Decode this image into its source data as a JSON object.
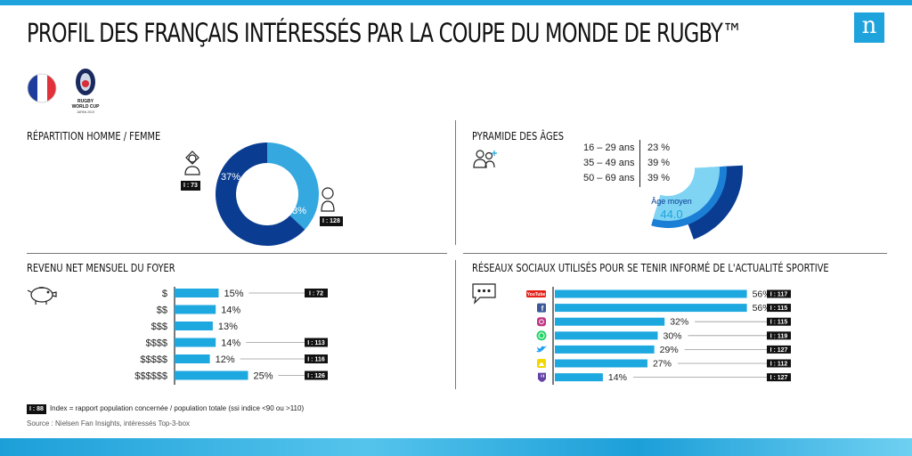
{
  "header": {
    "title": "PROFIL DES FRANÇAIS INTÉRESSÉS PAR LA COUPE DU MONDE DE RUGBY™",
    "brand_letter": "n",
    "event_logo_text": "RUGBY WORLD CUP JAPAN 2019"
  },
  "colors": {
    "dark_blue": "#0a3d91",
    "mid_blue": "#1c7fd6",
    "light_blue": "#35a8e0",
    "lighter_blue": "#7fd4f4",
    "bar_blue": "#1ea8e0",
    "flag_blue": "#1f3c9c",
    "flag_red": "#e1313b"
  },
  "gender": {
    "title": "RÉPARTITION HOMME / FEMME",
    "female_label": "37%",
    "male_label": "63%",
    "female_index": "I : 73",
    "male_index": "I : 128"
  },
  "age": {
    "title": "PYRAMIDE DES ÂGES",
    "rows": [
      {
        "range": "16 – 29 ans",
        "pct": "23 %"
      },
      {
        "range": "35 – 49 ans",
        "pct": "39 %"
      },
      {
        "range": "50 – 69 ans",
        "pct": "39 %"
      }
    ],
    "avg_label": "Âge moyen",
    "avg_value": "44.0"
  },
  "income": {
    "title": "REVENU NET MENSUEL DU FOYER",
    "rows": [
      {
        "label": "$",
        "pct": "15%",
        "index": "I : 72"
      },
      {
        "label": "$$",
        "pct": "14%",
        "index": ""
      },
      {
        "label": "$$$",
        "pct": "13%",
        "index": ""
      },
      {
        "label": "$$$$",
        "pct": "14%",
        "index": "I : 113"
      },
      {
        "label": "$$$$$",
        "pct": "12%",
        "index": "I : 116"
      },
      {
        "label": "$$$$$$",
        "pct": "25%",
        "index": "I : 126"
      }
    ]
  },
  "social": {
    "title": "RÉSEAUX SOCIAUX UTILISÉS POUR SE TENIR INFORMÉ DE L'ACTUALITÉ SPORTIVE",
    "rows": [
      {
        "icon": "youtube-icon",
        "icon_text": "YouTube",
        "color": "#e62117",
        "pct": "56%",
        "index": "I : 117"
      },
      {
        "icon": "facebook-icon",
        "icon_text": "f",
        "color": "#3b5998",
        "pct": "56%",
        "index": "I : 115"
      },
      {
        "icon": "instagram-icon",
        "icon_text": "",
        "color": "#c13584",
        "pct": "32%",
        "index": "I : 115"
      },
      {
        "icon": "whatsapp-icon",
        "icon_text": "",
        "color": "#25d366",
        "pct": "30%",
        "index": "I : 119"
      },
      {
        "icon": "twitter-icon",
        "icon_text": "",
        "color": "#1da1f2",
        "pct": "29%",
        "index": "I : 127"
      },
      {
        "icon": "snapchat-icon",
        "icon_text": "",
        "color": "#f2d600",
        "pct": "27%",
        "index": "I : 112"
      },
      {
        "icon": "twitch-icon",
        "icon_text": "",
        "color": "#6441a5",
        "pct": "14%",
        "index": "I : 127"
      }
    ]
  },
  "footer": {
    "legend_badge": "I : 88",
    "legend_text": "Index = rapport population concernée / population totale (ssi indice <90 ou >110)",
    "source": "Source : Nielsen Fan Insights, intéressés Top-3-box"
  },
  "chart_data": [
    {
      "type": "pie",
      "title": "RÉPARTITION HOMME / FEMME",
      "categories": [
        "Femme",
        "Homme"
      ],
      "values": [
        37,
        63
      ],
      "index": [
        73,
        128
      ]
    },
    {
      "type": "pie",
      "title": "PYRAMIDE DES ÂGES",
      "categories": [
        "16 – 29 ans",
        "35 – 49 ans",
        "50 – 69 ans"
      ],
      "values": [
        23,
        39,
        39
      ],
      "average_age": 44.0
    },
    {
      "type": "bar",
      "title": "REVENU NET MENSUEL DU FOYER",
      "categories": [
        "$",
        "$$",
        "$$$",
        "$$$$",
        "$$$$$",
        "$$$$$$"
      ],
      "values": [
        15,
        14,
        13,
        14,
        12,
        25
      ],
      "index": [
        72,
        null,
        null,
        113,
        116,
        126
      ]
    },
    {
      "type": "bar",
      "title": "RÉSEAUX SOCIAUX UTILISÉS POUR SE TENIR INFORMÉ DE L'ACTUALITÉ SPORTIVE",
      "categories": [
        "YouTube",
        "Facebook",
        "Instagram",
        "WhatsApp",
        "Twitter",
        "Snapchat",
        "Twitch"
      ],
      "values": [
        56,
        56,
        32,
        30,
        29,
        27,
        14
      ],
      "index": [
        117,
        115,
        115,
        119,
        127,
        112,
        127
      ]
    }
  ]
}
